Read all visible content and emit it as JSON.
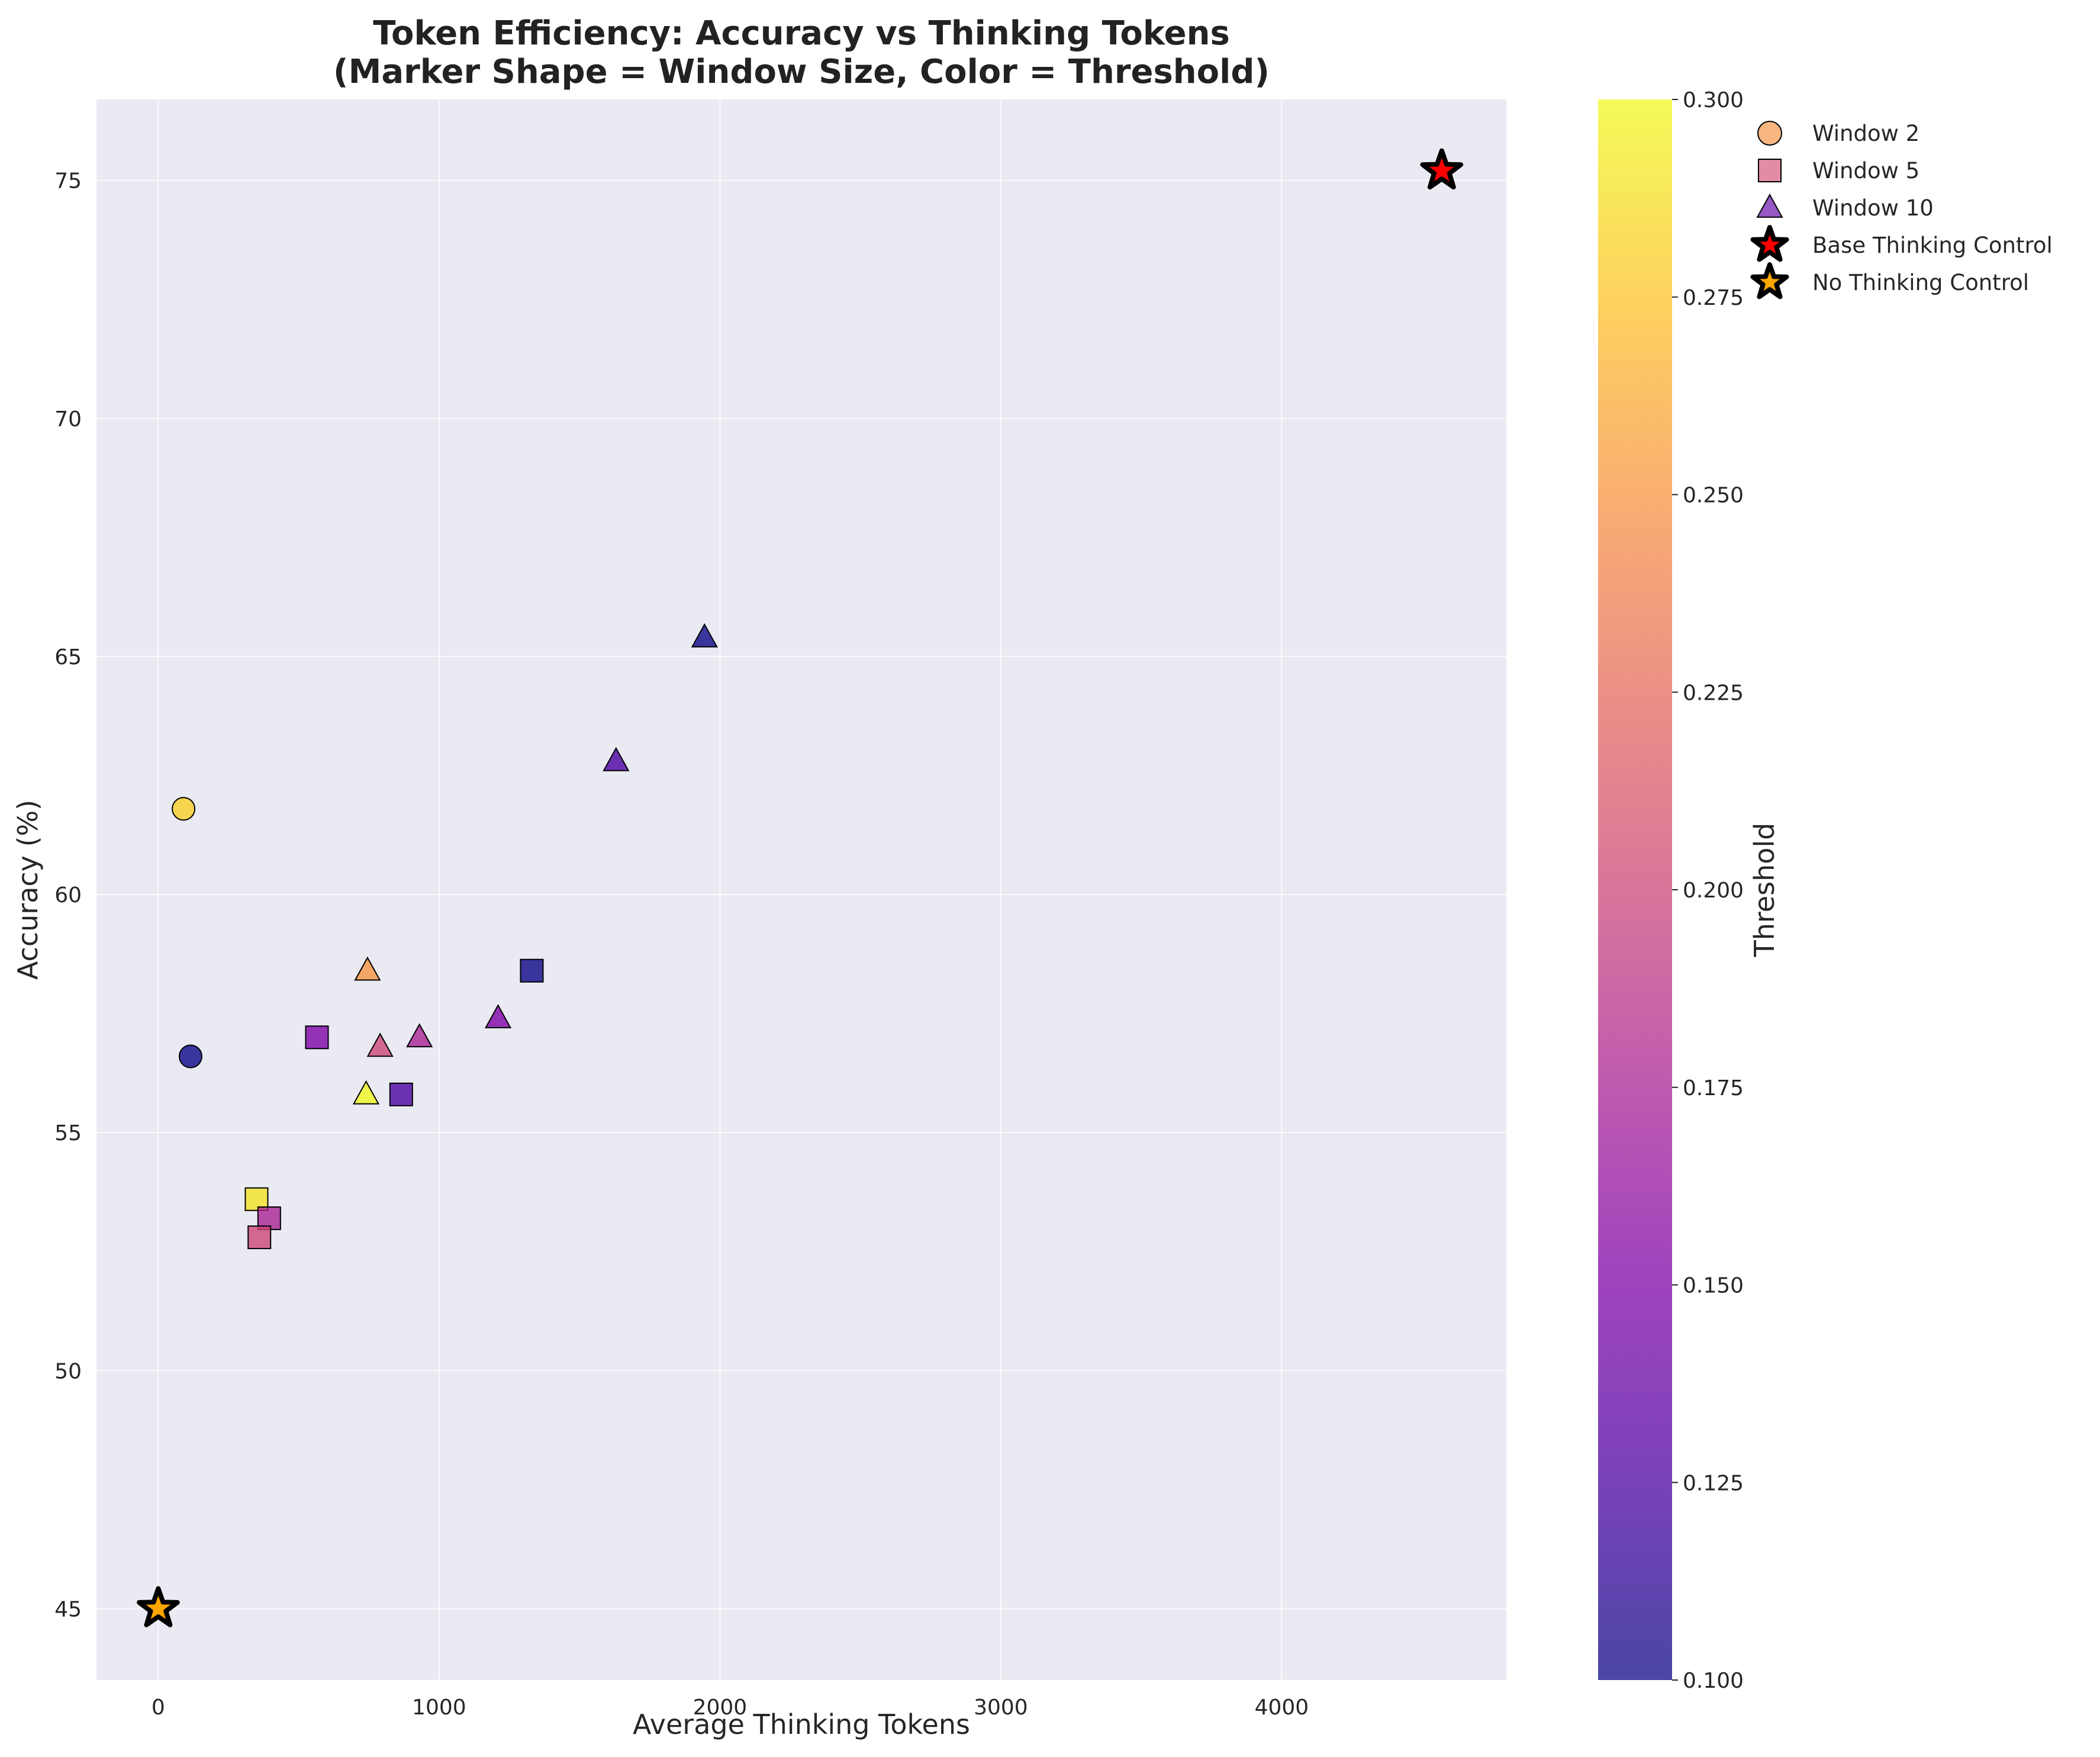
{
  "chart_data": {
    "type": "scatter",
    "title": "Token Efficiency: Accuracy vs Thinking Tokens",
    "subtitle": "(Marker Shape = Window Size, Color = Threshold)",
    "xlabel": "Average Thinking Tokens",
    "ylabel": "Accuracy (%)",
    "xlim": [
      -220,
      4800
    ],
    "ylim": [
      43.5,
      76.7
    ],
    "xticks": [
      0,
      1000,
      2000,
      3000,
      4000
    ],
    "yticks": [
      45,
      50,
      55,
      60,
      65,
      70,
      75
    ],
    "grid": true,
    "colormap": "plasma",
    "colorbar": {
      "label": "Threshold",
      "min": 0.1,
      "max": 0.3,
      "ticks": [
        "0.100",
        "0.125",
        "0.150",
        "0.175",
        "0.200",
        "0.225",
        "0.250",
        "0.275",
        "0.300"
      ]
    },
    "legend_position": "upper-right-outside",
    "legend": [
      {
        "label": "Window 2",
        "marker": "circle",
        "color": "#f8a462"
      },
      {
        "label": "Window 5",
        "marker": "square",
        "color": "#db6f8f"
      },
      {
        "label": "Window 10",
        "marker": "triangle",
        "color": "#7c2fb5"
      },
      {
        "label": "Base Thinking Control",
        "marker": "star",
        "color": "#ff0000"
      },
      {
        "label": "No Thinking Control",
        "marker": "star",
        "color": "#ffa500"
      }
    ],
    "series": [
      {
        "name": "Window 2",
        "marker": "circle",
        "points": [
          {
            "x": 90,
            "y": 61.8,
            "threshold": 0.28
          },
          {
            "x": 115,
            "y": 56.6,
            "threshold": 0.1
          }
        ]
      },
      {
        "name": "Window 5",
        "marker": "square",
        "points": [
          {
            "x": 1330,
            "y": 58.4,
            "threshold": 0.1
          },
          {
            "x": 565,
            "y": 57.0,
            "threshold": 0.15
          },
          {
            "x": 865,
            "y": 55.8,
            "threshold": 0.125
          },
          {
            "x": 350,
            "y": 53.6,
            "threshold": 0.29
          },
          {
            "x": 395,
            "y": 53.2,
            "threshold": 0.175
          },
          {
            "x": 360,
            "y": 52.8,
            "threshold": 0.2
          }
        ]
      },
      {
        "name": "Window 10",
        "marker": "triangle",
        "points": [
          {
            "x": 1945,
            "y": 65.4,
            "threshold": 0.1
          },
          {
            "x": 1630,
            "y": 62.8,
            "threshold": 0.125
          },
          {
            "x": 745,
            "y": 58.4,
            "threshold": 0.25
          },
          {
            "x": 1210,
            "y": 57.4,
            "threshold": 0.15
          },
          {
            "x": 930,
            "y": 57.0,
            "threshold": 0.175
          },
          {
            "x": 790,
            "y": 56.8,
            "threshold": 0.2
          },
          {
            "x": 740,
            "y": 55.8,
            "threshold": 0.3
          }
        ]
      },
      {
        "name": "Base Thinking Control",
        "marker": "star",
        "color": "#ff0000",
        "points": [
          {
            "x": 4570,
            "y": 75.2
          }
        ]
      },
      {
        "name": "No Thinking Control",
        "marker": "star",
        "color": "#ffa500",
        "points": [
          {
            "x": 0,
            "y": 45.0
          }
        ]
      }
    ]
  }
}
